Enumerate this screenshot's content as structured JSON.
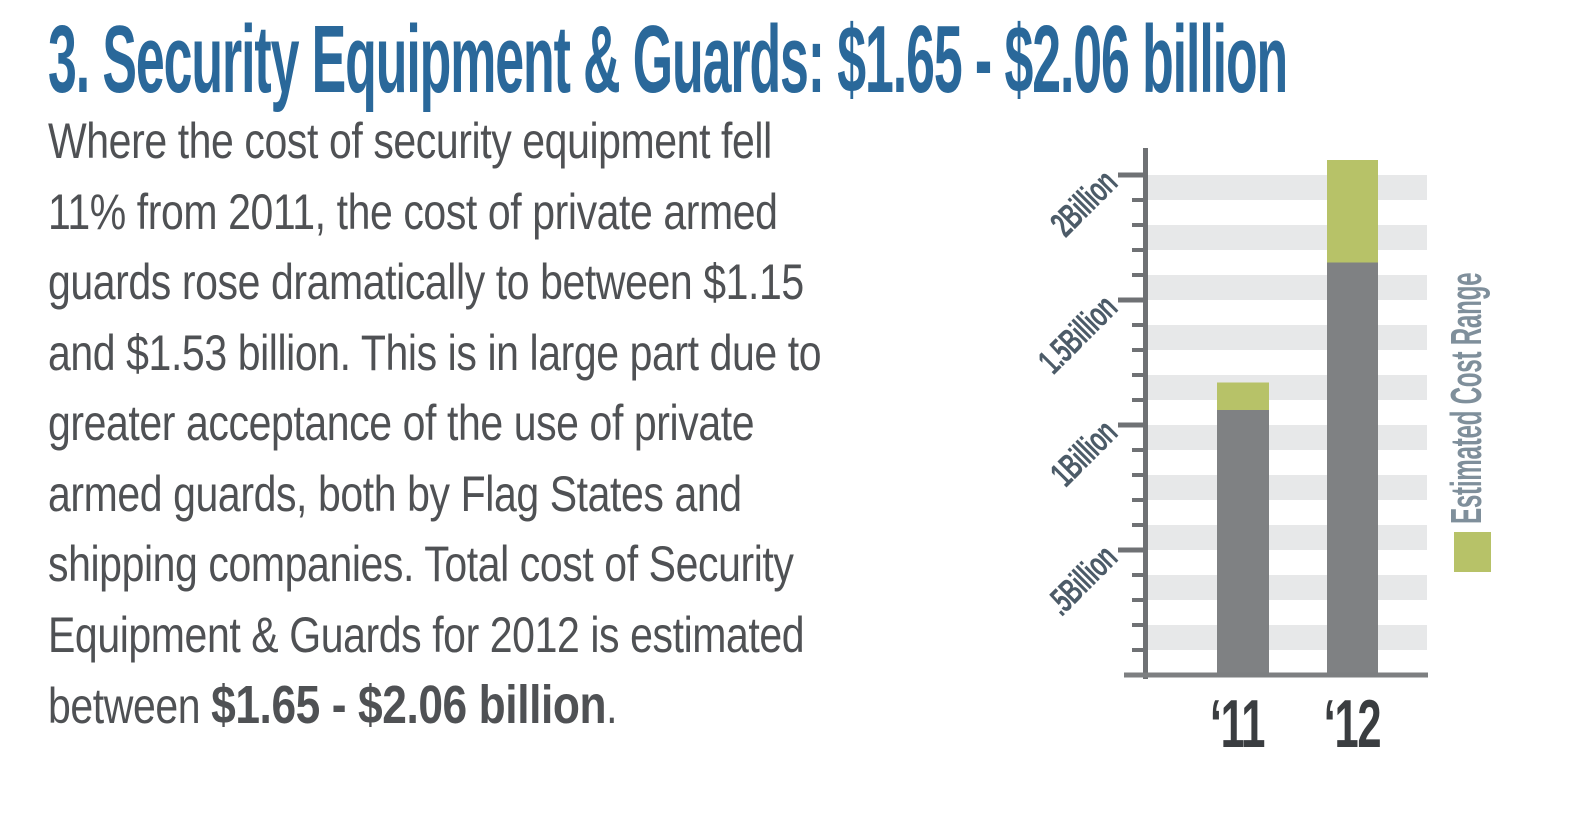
{
  "page": {
    "title": "3. Security Equipment & Guards: $1.65 - $2.06 billion"
  },
  "body": {
    "lines": [
      "Where the cost of security equipment fell",
      "11% from 2011, the cost of private armed",
      "guards rose dramatically to between $1.15",
      "and $1.53 billion. This is in large part due to",
      "greater acceptance of the use of private",
      "armed guards, both by Flag States and",
      "shipping companies. Total cost of Security",
      "Equipment & Guards for 2012 is estimated"
    ],
    "last_line": {
      "prefix": "between ",
      "bold": "$1.65 - $2.06 billion",
      "suffix": "."
    }
  },
  "chart_data": {
    "type": "bar",
    "subtype": "stacked-range",
    "title": "",
    "categories": [
      "‘11",
      "‘12"
    ],
    "bars": [
      {
        "category": "‘11",
        "low": 1.06,
        "high": 1.17
      },
      {
        "category": "‘12",
        "low": 1.65,
        "high": 2.06
      }
    ],
    "y_ticks": [
      {
        "value": 2.0,
        "label": "2Billion"
      },
      {
        "value": 1.5,
        "label": "1.5Billion"
      },
      {
        "value": 1.0,
        "label": "1Billion"
      },
      {
        "value": 0.5,
        "label": ".5Billion"
      }
    ],
    "minor_tick_step": 0.1,
    "ylim": [
      0,
      2.1
    ],
    "grid": "striped-bands",
    "legend": {
      "label": "Estimated Cost Range",
      "position": "right"
    }
  },
  "colors": {
    "background": "#ffffff",
    "title_blue": "#2a689a",
    "body_text": "#4f5154",
    "bar_gray": "#7f8183",
    "range_green": "#b7c268",
    "stripe_gray": "#e7e8e9",
    "axis_gray": "#6f7174",
    "baseline_gray": "#7d7f81",
    "y_label": "#4c5b68",
    "x_label": "#3a3d40",
    "legend_text": "#7f8f9b"
  }
}
